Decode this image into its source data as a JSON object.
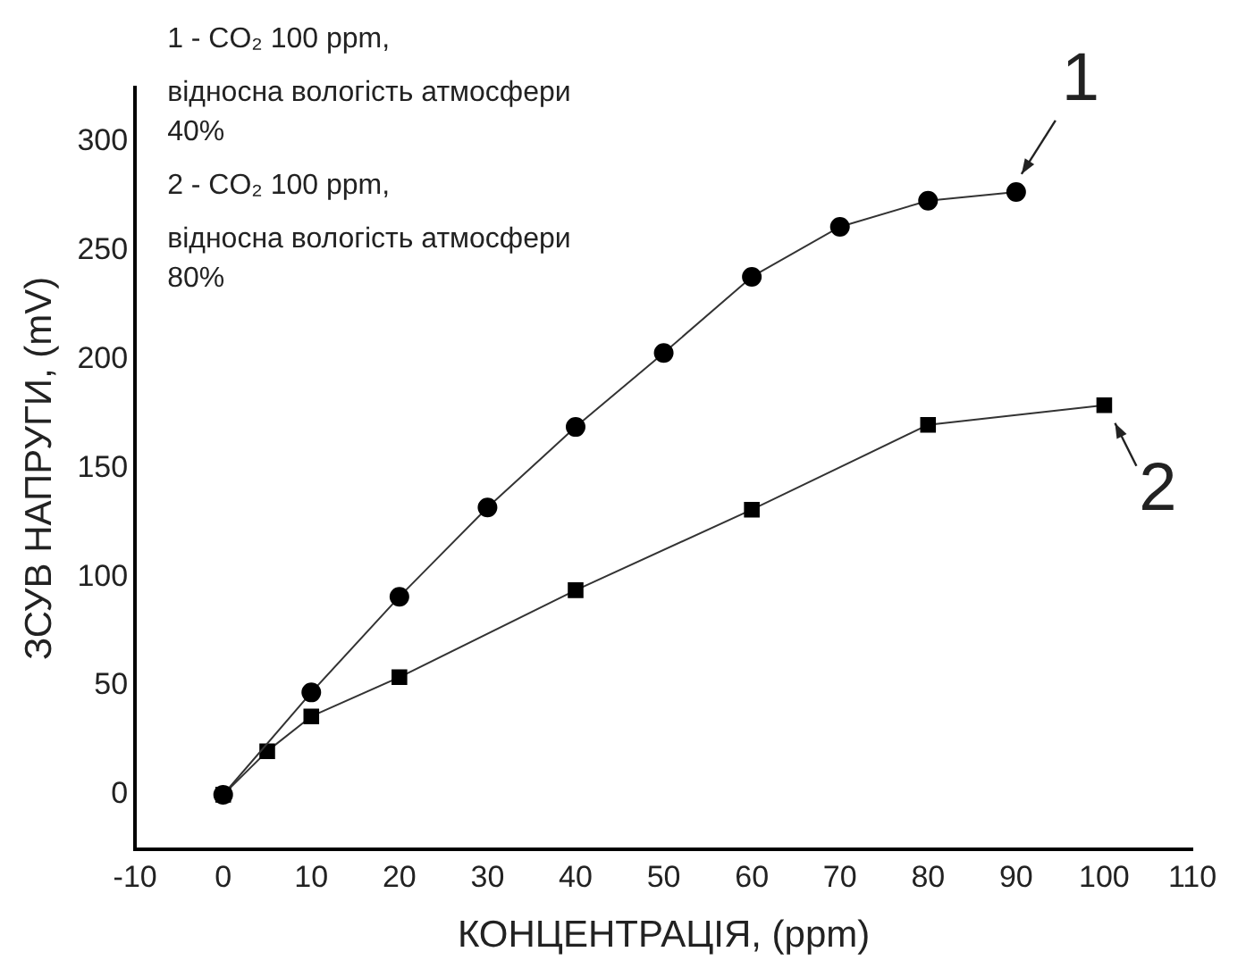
{
  "chart_data": {
    "type": "line",
    "xlabel": "КОНЦЕНТРАЦІЯ, (ppm)",
    "ylabel": "ЗСУВ НАПРУГИ, (mV)",
    "xlim": [
      -10,
      110
    ],
    "xticks": [
      -10,
      0,
      10,
      20,
      30,
      40,
      50,
      60,
      70,
      80,
      90,
      100,
      110
    ],
    "ylim": [
      -25,
      325
    ],
    "yticks": [
      0,
      50,
      100,
      150,
      200,
      250,
      300
    ],
    "grid": false,
    "legend": false,
    "line_style": "solid",
    "series": [
      {
        "color": "#000000",
        "marker": "circle",
        "x": [
          0,
          10,
          20,
          30,
          40,
          50,
          60,
          70,
          80,
          90
        ],
        "values": [
          0,
          47,
          91,
          132,
          169,
          203,
          238,
          261,
          273,
          277
        ]
      },
      {
        "color": "#000000",
        "marker": "square",
        "x": [
          0,
          5,
          10,
          20,
          40,
          60,
          80,
          100
        ],
        "values": [
          0,
          20,
          36,
          54,
          94,
          131,
          170,
          179
        ]
      }
    ],
    "annotations": [
      "1 - CO₂ 100 ppm,",
      "відносна вологість атмосфери",
      "40%",
      "2 - CO₂ 100 ppm,",
      "відносна вологість атмосфери",
      "80%",
      {
        "text": "1",
        "x": 90,
        "y": 277
      },
      {
        "text": "2",
        "x": 100,
        "y": 179
      }
    ]
  }
}
